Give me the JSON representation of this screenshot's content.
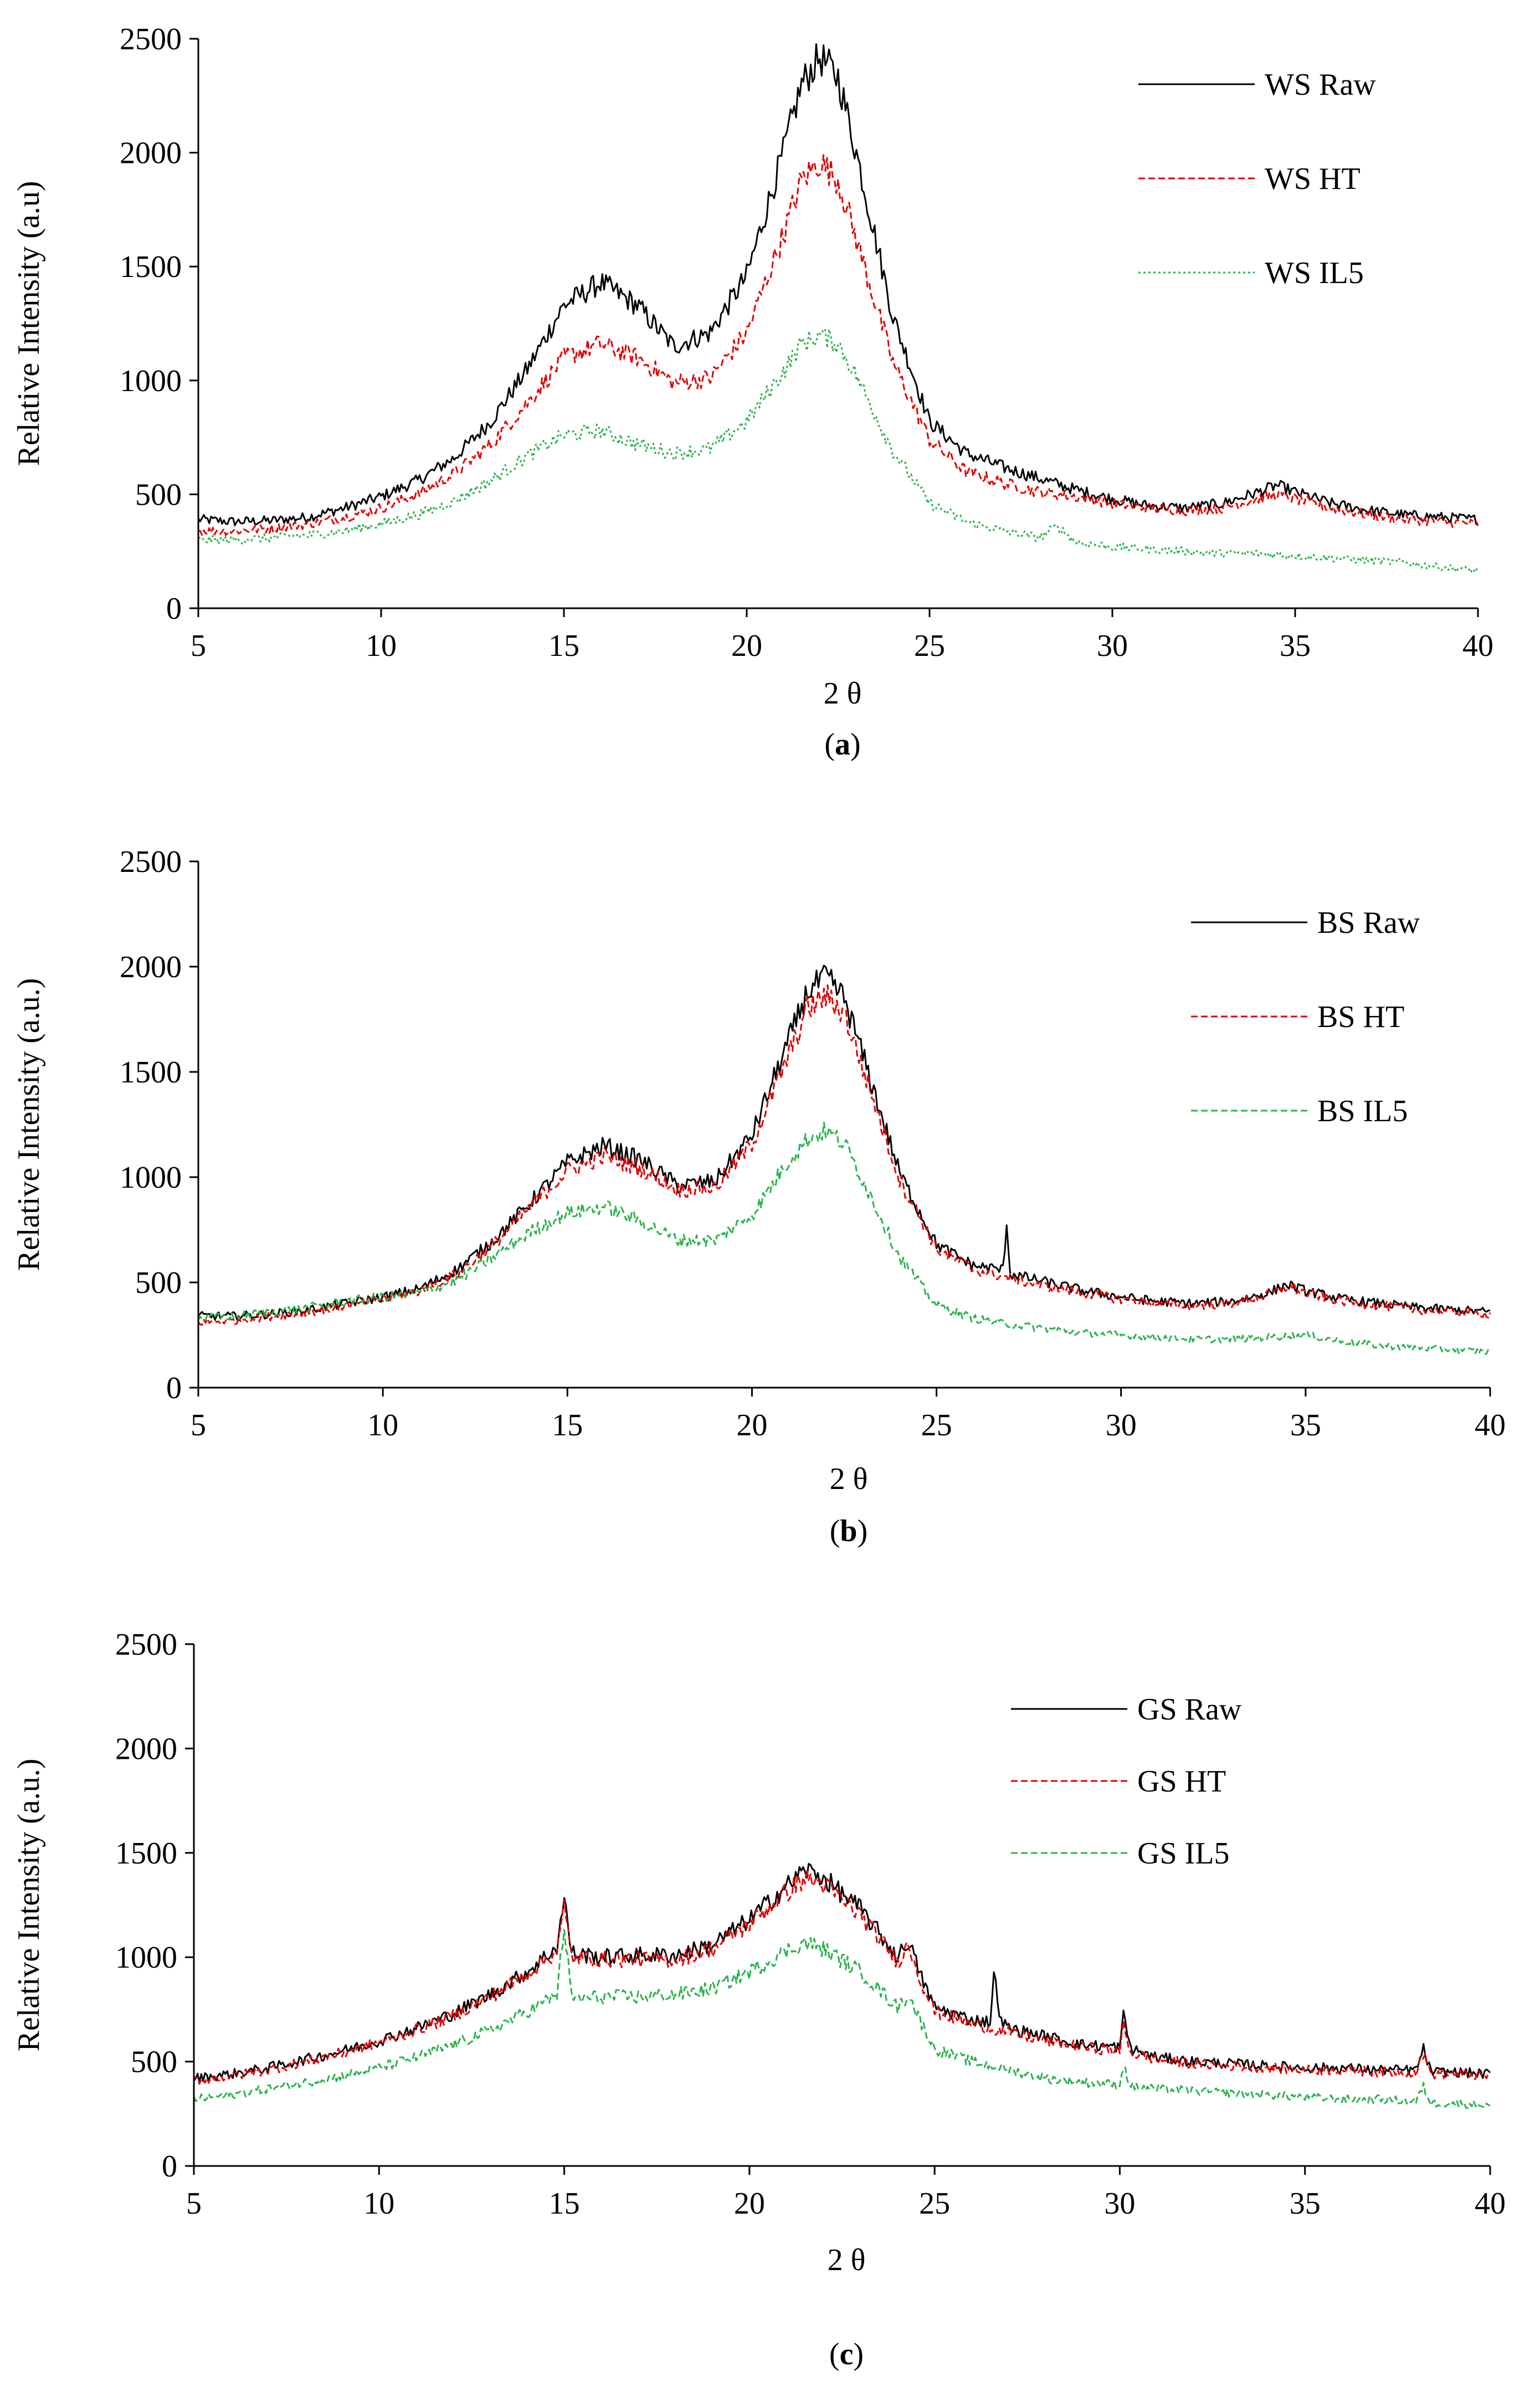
{
  "colors": {
    "raw": "#000000",
    "ht": "#e00000",
    "il5": "#2bb24c"
  },
  "chart_data": [
    {
      "type": "line",
      "panel_label": "(a)",
      "xlabel": "2 θ",
      "ylabel": "Relative Intensity (a.u)",
      "xlim": [
        5,
        40
      ],
      "ylim": [
        0,
        2500
      ],
      "xticks": [
        5,
        10,
        15,
        20,
        25,
        30,
        35,
        40
      ],
      "yticks": [
        0,
        500,
        1000,
        1500,
        2000,
        2500
      ],
      "legend_position": "top-right",
      "grid": false,
      "series": [
        {
          "name": "WS Raw",
          "color_key": "raw",
          "style": "solid",
          "x": [
            5,
            6,
            7,
            8,
            9,
            10,
            11,
            12,
            13,
            14,
            15,
            16,
            17,
            18,
            19,
            20,
            21,
            21.5,
            22,
            22.5,
            23,
            24,
            25,
            26,
            27,
            28,
            29,
            30,
            31,
            32,
            33,
            34,
            34.5,
            35,
            36,
            37,
            38,
            39,
            40
          ],
          "y": [
            390,
            380,
            385,
            400,
            440,
            490,
            560,
            660,
            820,
            1050,
            1330,
            1430,
            1330,
            1150,
            1210,
            1460,
            2000,
            2300,
            2420,
            2330,
            2000,
            1280,
            820,
            680,
            620,
            570,
            520,
            480,
            450,
            440,
            460,
            510,
            540,
            510,
            460,
            430,
            410,
            400,
            390
          ]
        },
        {
          "name": "WS HT",
          "color_key": "ht",
          "style": "dashed",
          "x": [
            5,
            6,
            7,
            8,
            9,
            10,
            11,
            12,
            13,
            14,
            15,
            16,
            17,
            18,
            19,
            20,
            21,
            21.5,
            22,
            22.5,
            23,
            24,
            25,
            26,
            27,
            28,
            29,
            30,
            31,
            32,
            33,
            34,
            34.5,
            35,
            36,
            37,
            38,
            39,
            40
          ],
          "y": [
            340,
            340,
            350,
            370,
            400,
            440,
            500,
            590,
            720,
            900,
            1100,
            1160,
            1100,
            990,
            1010,
            1210,
            1640,
            1880,
            1960,
            1880,
            1620,
            1080,
            740,
            600,
            550,
            510,
            490,
            460,
            440,
            430,
            440,
            480,
            500,
            480,
            440,
            410,
            390,
            380,
            370
          ]
        },
        {
          "name": "WS IL5",
          "color_key": "il5",
          "style": "dotted",
          "x": [
            5,
            6,
            7,
            8,
            9,
            10,
            11,
            12,
            13,
            14,
            15,
            16,
            17,
            18,
            19,
            20,
            21,
            21.5,
            22,
            22.5,
            23,
            24,
            25,
            26,
            27,
            28,
            28.5,
            29,
            30,
            31,
            32,
            33,
            34,
            35,
            36,
            37,
            38,
            39,
            40
          ],
          "y": [
            300,
            300,
            310,
            320,
            340,
            370,
            410,
            470,
            560,
            670,
            760,
            780,
            720,
            680,
            700,
            820,
            1040,
            1160,
            1200,
            1160,
            1020,
            690,
            460,
            380,
            340,
            310,
            360,
            290,
            270,
            260,
            250,
            240,
            240,
            230,
            220,
            210,
            200,
            180,
            165
          ]
        }
      ]
    },
    {
      "type": "line",
      "panel_label": "(b)",
      "xlabel": "2 θ",
      "ylabel": "Relative Intensity (a.u.)",
      "xlim": [
        5,
        40
      ],
      "ylim": [
        0,
        2500
      ],
      "xticks": [
        5,
        10,
        15,
        20,
        25,
        30,
        35,
        40
      ],
      "yticks": [
        0,
        500,
        1000,
        1500,
        2000,
        2500
      ],
      "legend_position": "top-right",
      "grid": false,
      "series": [
        {
          "name": "BS Raw",
          "color_key": "raw",
          "style": "solid",
          "x": [
            5,
            6,
            7,
            8,
            9,
            10,
            11,
            12,
            13,
            14,
            15,
            16,
            17,
            18,
            19,
            20,
            21,
            21.5,
            22,
            22.5,
            23,
            24,
            25,
            26,
            26.8,
            26.9,
            27,
            28,
            29,
            30,
            31,
            32,
            33,
            34,
            34.5,
            35,
            36,
            37,
            38,
            39,
            40
          ],
          "y": [
            340,
            340,
            350,
            370,
            400,
            430,
            470,
            560,
            700,
            880,
            1070,
            1150,
            1080,
            960,
            980,
            1200,
            1650,
            1880,
            1950,
            1850,
            1580,
            1020,
            680,
            580,
            560,
            780,
            540,
            500,
            460,
            430,
            410,
            400,
            410,
            450,
            490,
            460,
            420,
            400,
            380,
            370,
            360
          ]
        },
        {
          "name": "BS HT",
          "color_key": "ht",
          "style": "dashed",
          "x": [
            5,
            6,
            7,
            8,
            9,
            10,
            11,
            12,
            13,
            14,
            15,
            16,
            17,
            18,
            19,
            20,
            21,
            21.5,
            22,
            22.5,
            23,
            24,
            25,
            26,
            27,
            28,
            29,
            30,
            31,
            32,
            33,
            34,
            34.5,
            35,
            36,
            37,
            38,
            39,
            40
          ],
          "y": [
            310,
            320,
            340,
            360,
            390,
            420,
            460,
            540,
            680,
            860,
            1030,
            1100,
            1040,
            940,
            950,
            1160,
            1580,
            1800,
            1860,
            1780,
            1520,
            990,
            660,
            560,
            520,
            480,
            450,
            420,
            400,
            390,
            400,
            440,
            480,
            450,
            410,
            390,
            370,
            360,
            350
          ]
        },
        {
          "name": "BS IL5",
          "color_key": "il5",
          "style": "dashed",
          "x": [
            5,
            6,
            7,
            8,
            9,
            10,
            11,
            12,
            13,
            14,
            15,
            16,
            17,
            18,
            19,
            20,
            21,
            21.5,
            22,
            22.5,
            23,
            24,
            25,
            26,
            27,
            28,
            29,
            30,
            31,
            32,
            33,
            34,
            35,
            36,
            37,
            38,
            39,
            40
          ],
          "y": [
            330,
            340,
            360,
            380,
            410,
            430,
            450,
            510,
            620,
            740,
            830,
            860,
            790,
            700,
            700,
            820,
            1080,
            1180,
            1220,
            1160,
            990,
            620,
            390,
            330,
            300,
            280,
            260,
            250,
            240,
            230,
            230,
            240,
            250,
            220,
            200,
            190,
            180,
            170
          ]
        }
      ]
    },
    {
      "type": "line",
      "panel_label": "(c)",
      "xlabel": "2 θ",
      "ylabel": "Relative Intensity (a.u.)",
      "xlim": [
        5,
        40
      ],
      "ylim": [
        0,
        2500
      ],
      "xticks": [
        5,
        10,
        15,
        20,
        25,
        30,
        35,
        40
      ],
      "yticks": [
        0,
        500,
        1000,
        1500,
        2000,
        2500
      ],
      "legend_position": "top-right",
      "grid": false,
      "series": [
        {
          "name": "GS Raw",
          "color_key": "raw",
          "style": "solid",
          "x": [
            5,
            6,
            7,
            8,
            9,
            10,
            11,
            12,
            13,
            14,
            14.8,
            15,
            15.2,
            16,
            17,
            18,
            19,
            20,
            21,
            21.5,
            22,
            23,
            24,
            24.3,
            24.6,
            25,
            26,
            26.5,
            26.6,
            26.8,
            27,
            28,
            29,
            30,
            30.1,
            30.3,
            31,
            32,
            33,
            34,
            35,
            36,
            37,
            38,
            38.2,
            38.4,
            39,
            40
          ],
          "y": [
            420,
            440,
            470,
            510,
            550,
            600,
            660,
            730,
            820,
            930,
            1050,
            1280,
            1020,
            1000,
            1010,
            1010,
            1060,
            1180,
            1340,
            1420,
            1380,
            1230,
            1000,
            1080,
            920,
            760,
            700,
            690,
            920,
            690,
            660,
            620,
            580,
            570,
            720,
            560,
            520,
            500,
            490,
            480,
            470,
            470,
            460,
            460,
            560,
            450,
            450,
            440
          ]
        },
        {
          "name": "GS HT",
          "color_key": "ht",
          "style": "dashed",
          "x": [
            5,
            6,
            7,
            8,
            9,
            10,
            11,
            12,
            13,
            14,
            14.8,
            15,
            15.2,
            16,
            17,
            18,
            19,
            20,
            21,
            21.5,
            22,
            23,
            24,
            24.3,
            24.6,
            25,
            26,
            27,
            28,
            29,
            30,
            30.1,
            30.3,
            31,
            32,
            33,
            34,
            35,
            36,
            37,
            38,
            38.2,
            38.4,
            39,
            40
          ],
          "y": [
            410,
            430,
            460,
            500,
            540,
            590,
            650,
            720,
            810,
            920,
            1030,
            1240,
            1000,
            990,
            990,
            990,
            1040,
            1160,
            1310,
            1380,
            1350,
            1200,
            980,
            1060,
            900,
            740,
            680,
            640,
            600,
            570,
            550,
            680,
            540,
            510,
            490,
            480,
            470,
            460,
            460,
            450,
            450,
            540,
            440,
            440,
            430
          ]
        },
        {
          "name": "GS IL5",
          "color_key": "il5",
          "style": "dashed",
          "x": [
            5,
            6,
            7,
            8,
            9,
            10,
            11,
            12,
            13,
            14,
            14.8,
            15,
            15.2,
            16,
            17,
            18,
            19,
            20,
            21,
            21.5,
            22,
            23,
            24,
            24.3,
            24.6,
            25,
            26,
            27,
            28,
            29,
            30,
            30.1,
            30.3,
            31,
            32,
            33,
            34,
            35,
            36,
            37,
            38,
            38.2,
            38.4,
            39,
            40
          ],
          "y": [
            320,
            340,
            370,
            400,
            430,
            470,
            520,
            580,
            650,
            740,
            820,
            1150,
            800,
            810,
            810,
            820,
            850,
            930,
            1030,
            1070,
            1040,
            930,
            760,
            820,
            700,
            560,
            500,
            460,
            420,
            400,
            390,
            480,
            380,
            370,
            360,
            350,
            340,
            330,
            320,
            320,
            310,
            380,
            300,
            300,
            290
          ]
        }
      ]
    }
  ]
}
